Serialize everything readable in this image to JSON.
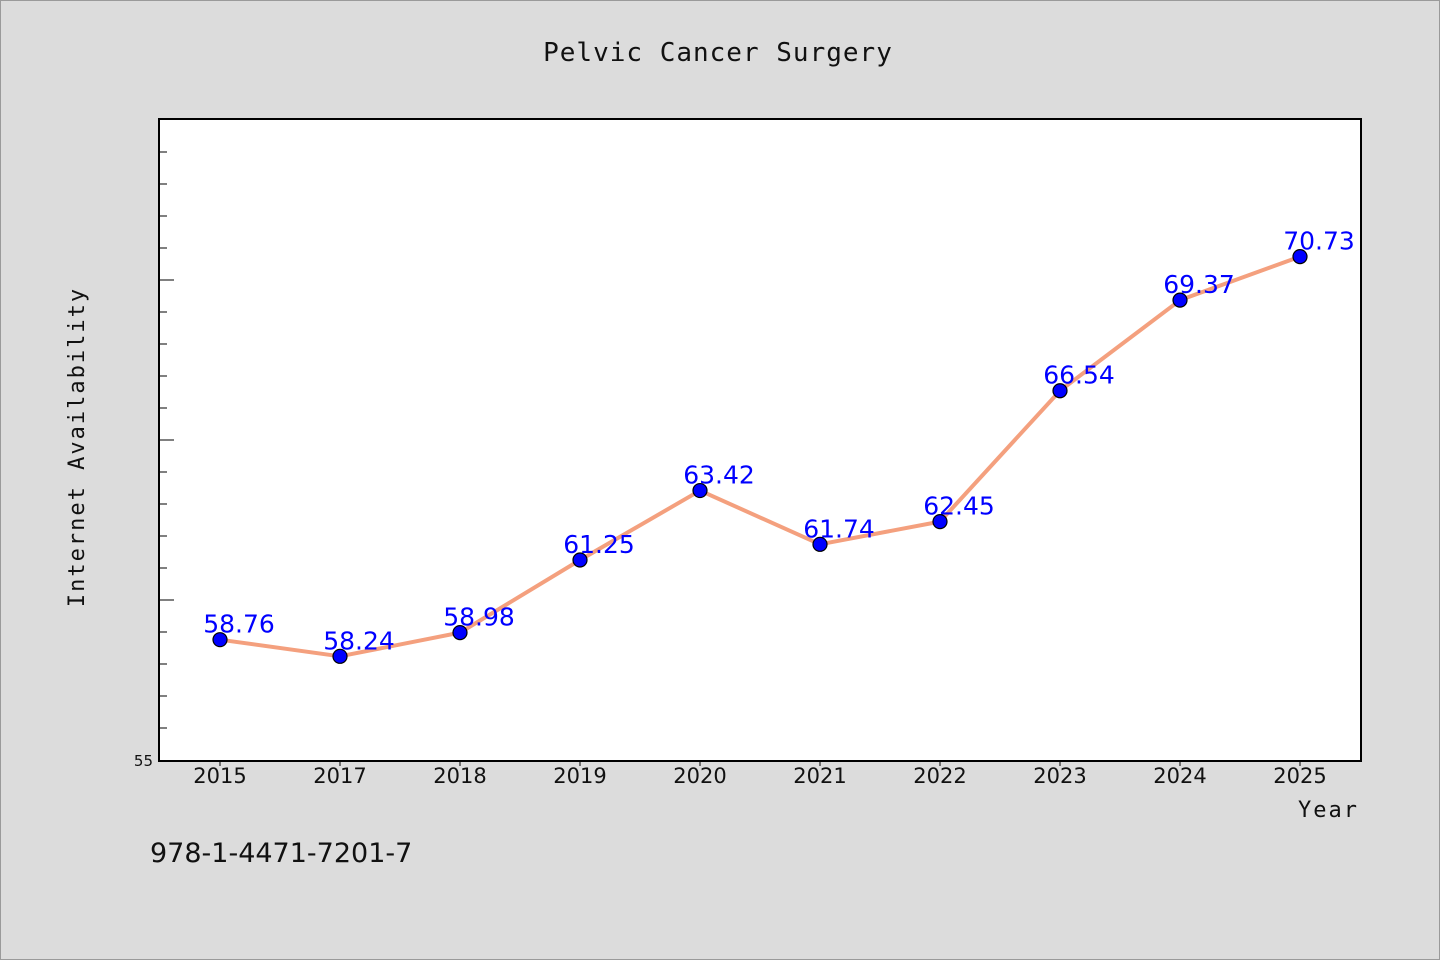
{
  "chart_data": {
    "type": "line",
    "title": "Pelvic Cancer Surgery",
    "xlabel": "Year",
    "ylabel": "Internet Availability",
    "categories": [
      "2015",
      "2017",
      "2018",
      "2019",
      "2020",
      "2021",
      "2022",
      "2023",
      "2024",
      "2025"
    ],
    "series": [
      {
        "values": [
          58.76,
          58.24,
          58.98,
          61.25,
          63.42,
          61.74,
          62.45,
          66.54,
          69.37,
          70.73
        ],
        "labels": [
          "58.76",
          "58.24",
          "58.98",
          "61.25",
          "63.42",
          "61.74",
          "62.45",
          "66.54",
          "69.37",
          "70.73"
        ]
      }
    ],
    "ylim": [
      55,
      75
    ],
    "y_tick_labels": [
      "55"
    ],
    "grid": false,
    "colors": {
      "line": "#f4a07e",
      "marker": "#0000ff",
      "data_label": "#0000ff"
    }
  },
  "footer": {
    "isbn": "978-1-4471-7201-7"
  }
}
